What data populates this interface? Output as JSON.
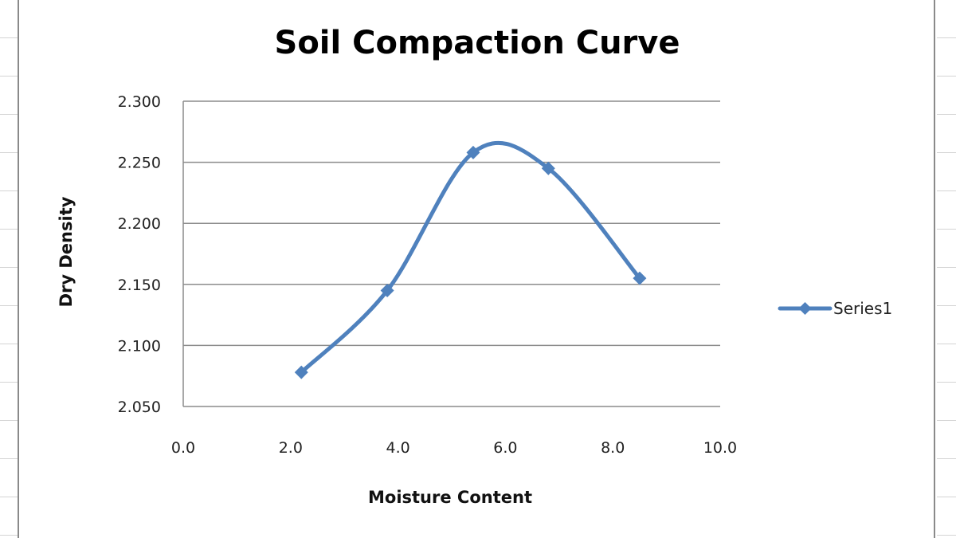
{
  "chart_data": {
    "type": "scatter",
    "title": "Soil Compaction Curve",
    "xlabel": "Moisture Content",
    "ylabel": "Dry Density",
    "xlim": [
      0,
      10
    ],
    "ylim": [
      2.05,
      2.3
    ],
    "x_ticks": [
      "0.0",
      "2.0",
      "4.0",
      "6.0",
      "8.0",
      "10.0"
    ],
    "y_ticks": [
      "2.050",
      "2.100",
      "2.150",
      "2.200",
      "2.250",
      "2.300"
    ],
    "grid": "horizontal",
    "legend": "right",
    "line_style": "smoothed",
    "series": [
      {
        "name": "Series1",
        "color": "#4F81BD",
        "marker": "diamond",
        "x": [
          2.2,
          3.8,
          5.4,
          6.8,
          8.5
        ],
        "y": [
          2.078,
          2.145,
          2.258,
          2.245,
          2.155
        ]
      }
    ]
  }
}
